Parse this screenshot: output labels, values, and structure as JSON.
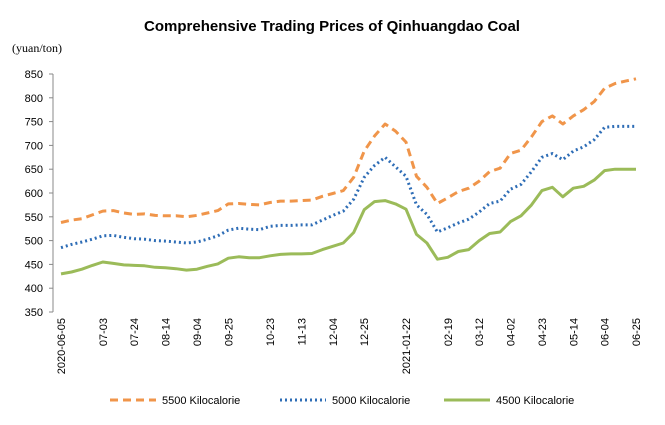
{
  "chart_data": {
    "type": "line",
    "title": "Comprehensive Trading Prices of Qinhuangdao Coal",
    "ylabel": "(yuan/ton)",
    "xlabel": "",
    "ylim": [
      350,
      850
    ],
    "y_ticks": [
      350,
      400,
      450,
      500,
      550,
      600,
      650,
      700,
      750,
      800,
      850
    ],
    "grid": false,
    "legend_position": "bottom",
    "x": [
      "2020-06-05",
      "06-12",
      "06-19",
      "06-26",
      "07-03",
      "07-10",
      "07-17",
      "07-24",
      "07-31",
      "08-07",
      "08-14",
      "08-21",
      "08-28",
      "09-04",
      "09-11",
      "09-18",
      "09-25",
      "10-02",
      "10-09",
      "10-16",
      "10-23",
      "10-30",
      "11-06",
      "11-13",
      "11-20",
      "11-27",
      "12-04",
      "12-11",
      "12-18",
      "12-25",
      "2021-01-01",
      "01-08",
      "01-15",
      "2021-01-22",
      "01-29",
      "02-05",
      "02-12",
      "02-19",
      "02-26",
      "03-05",
      "03-12",
      "03-19",
      "03-26",
      "04-02",
      "04-09",
      "04-16",
      "04-23",
      "04-30",
      "05-07",
      "05-14",
      "05-21",
      "05-28",
      "06-04",
      "06-11",
      "06-18",
      "06-25"
    ],
    "x_tick_labels": [
      "2020-06-05",
      "07-03",
      "07-24",
      "08-14",
      "09-04",
      "09-25",
      "10-23",
      "11-13",
      "12-04",
      "12-25",
      "2021-01-22",
      "02-19",
      "03-12",
      "04-02",
      "04-23",
      "05-14",
      "06-04",
      "06-25"
    ],
    "series": [
      {
        "name": "5500 Kilocalorie",
        "color": "#f0954a",
        "style": "dashed",
        "values": [
          538,
          543,
          546,
          554,
          562,
          563,
          558,
          555,
          556,
          553,
          552,
          552,
          550,
          553,
          558,
          563,
          577,
          578,
          576,
          575,
          580,
          583,
          583,
          584,
          585,
          593,
          599,
          605,
          633,
          688,
          720,
          745,
          730,
          707,
          635,
          612,
          578,
          590,
          603,
          610,
          625,
          645,
          652,
          683,
          690,
          718,
          750,
          762,
          745,
          762,
          775,
          792,
          820,
          830,
          835,
          840
        ]
      },
      {
        "name": "5000 Kilocalorie",
        "color": "#2e6db6",
        "style": "dotted",
        "values": [
          485,
          492,
          497,
          503,
          510,
          511,
          507,
          504,
          503,
          500,
          499,
          497,
          495,
          497,
          503,
          510,
          522,
          526,
          524,
          523,
          530,
          532,
          532,
          533,
          533,
          543,
          553,
          562,
          587,
          633,
          658,
          675,
          655,
          635,
          575,
          555,
          518,
          527,
          537,
          545,
          560,
          578,
          583,
          608,
          618,
          645,
          675,
          683,
          670,
          688,
          697,
          712,
          738,
          740,
          740,
          740
        ]
      },
      {
        "name": "4500 Kilocalorie",
        "color": "#9bbb59",
        "style": "solid",
        "values": [
          430,
          434,
          440,
          448,
          455,
          452,
          449,
          448,
          447,
          444,
          443,
          441,
          438,
          440,
          446,
          451,
          463,
          466,
          464,
          464,
          468,
          471,
          472,
          472,
          473,
          481,
          488,
          495,
          517,
          565,
          582,
          584,
          577,
          566,
          513,
          495,
          461,
          465,
          477,
          481,
          500,
          515,
          518,
          540,
          552,
          575,
          605,
          612,
          592,
          610,
          614,
          627,
          647,
          650,
          650,
          650
        ]
      }
    ]
  }
}
